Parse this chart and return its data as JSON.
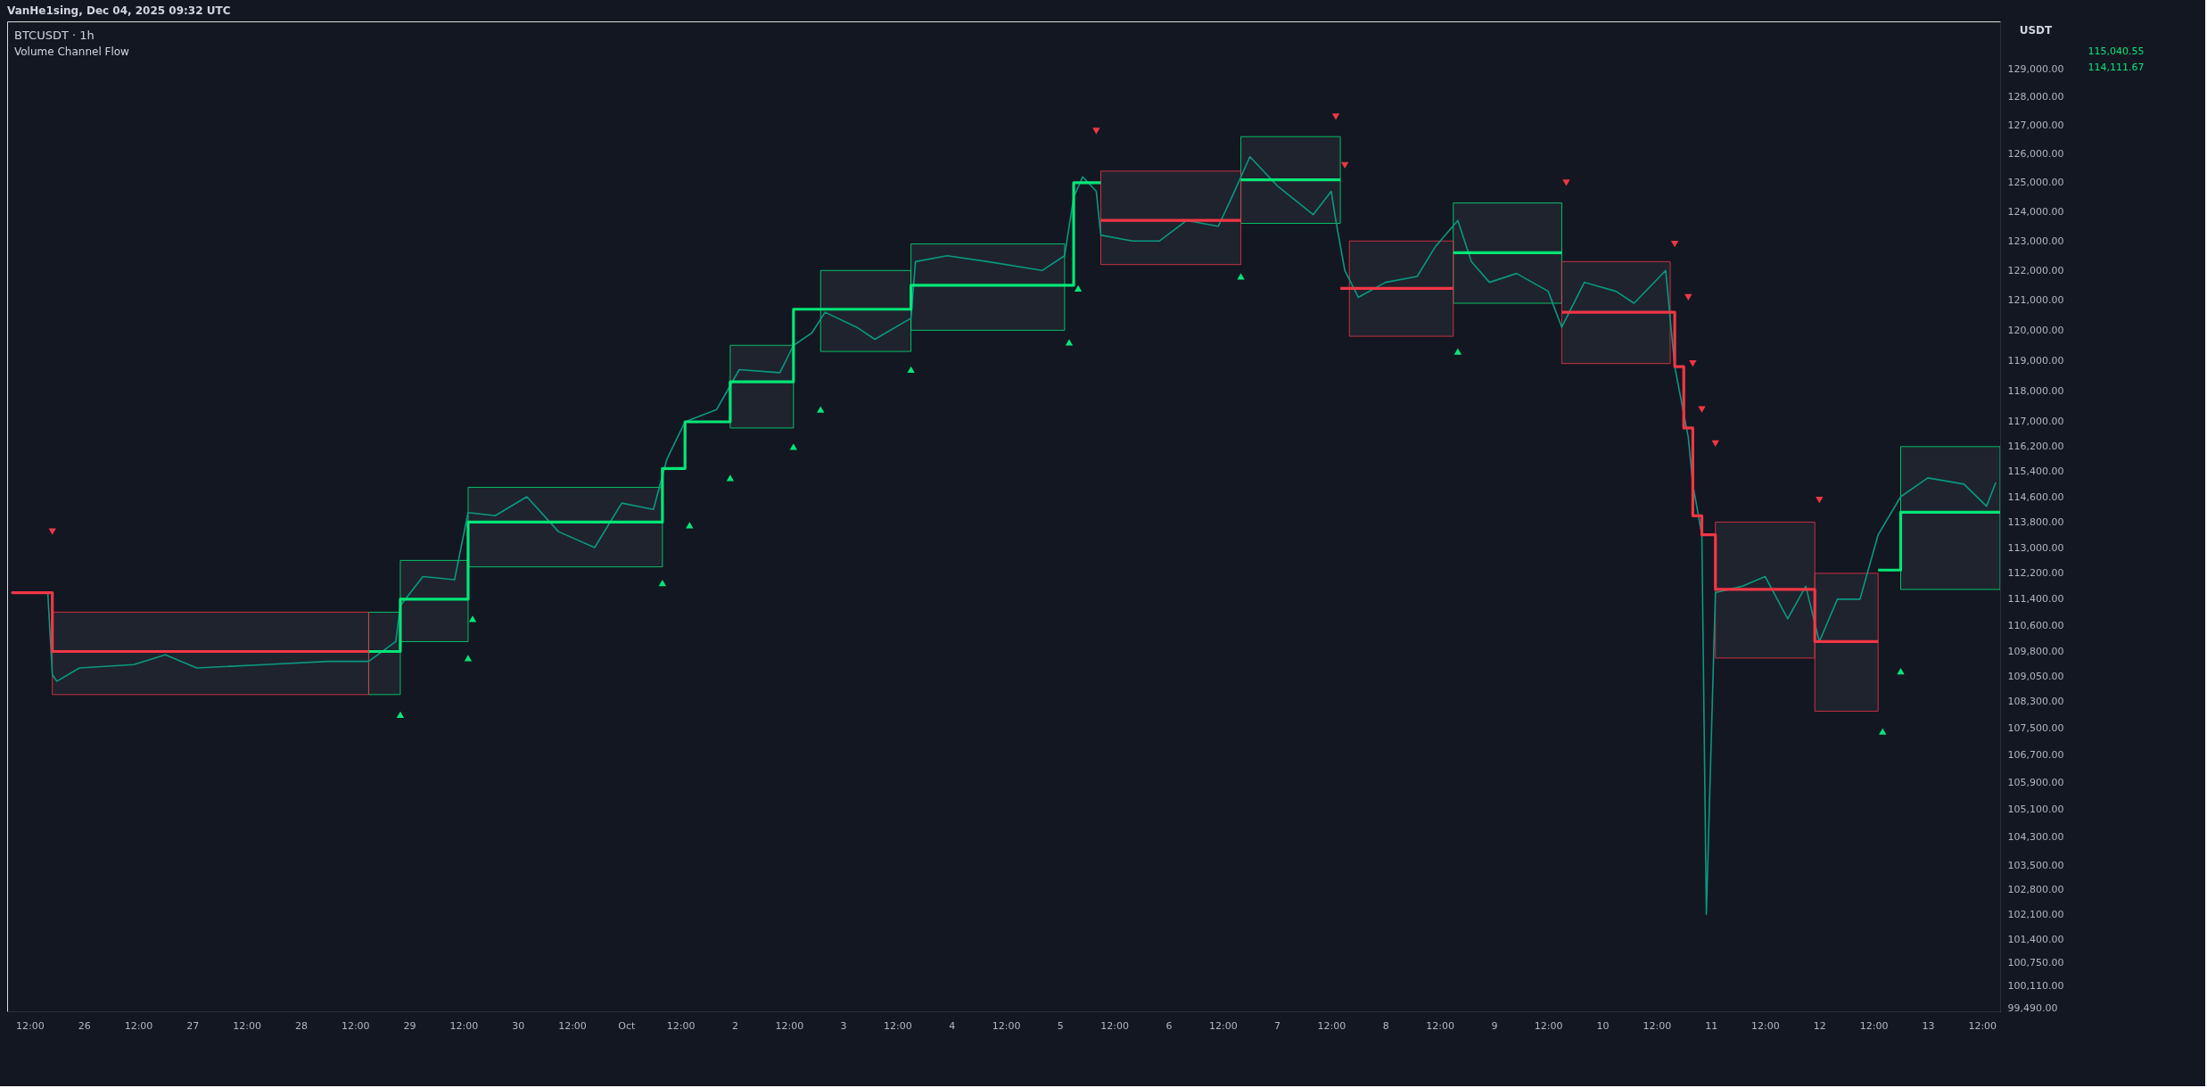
{
  "chart_data": {
    "type": "line",
    "title": "BTCUSDT · 1h",
    "subtitle": "Volume Channel Flow",
    "ylabel": "USDT",
    "annotations": [
      "VanHe1sing, Dec 04, 2025 09:32 UTC",
      "115,040.55",
      "114,111.67"
    ],
    "log": true,
    "grid": false,
    "xlim": [
      "2025-09-25T07:00",
      "2025-10-13T16:00"
    ],
    "ylim": [
      99400,
      130700
    ],
    "yticks": [
      {
        "value": 99490,
        "label": "99,490.00"
      },
      {
        "value": 100110,
        "label": "100,110.00"
      },
      {
        "value": 100750,
        "label": "100,750.00"
      },
      {
        "value": 101400,
        "label": "101,400.00"
      },
      {
        "value": 102100,
        "label": "102,100.00"
      },
      {
        "value": 102800,
        "label": "102,800.00"
      },
      {
        "value": 103500,
        "label": "103,500.00"
      },
      {
        "value": 104300,
        "label": "104,300.00"
      },
      {
        "value": 105100,
        "label": "105,100.00"
      },
      {
        "value": 105900,
        "label": "105,900.00"
      },
      {
        "value": 106700,
        "label": "106,700.00"
      },
      {
        "value": 107500,
        "label": "107,500.00"
      },
      {
        "value": 108300,
        "label": "108,300.00"
      },
      {
        "value": 109050,
        "label": "109,050.00"
      },
      {
        "value": 109800,
        "label": "109,800.00"
      },
      {
        "value": 110600,
        "label": "110,600.00"
      },
      {
        "value": 111400,
        "label": "111,400.00"
      },
      {
        "value": 112200,
        "label": "112,200.00"
      },
      {
        "value": 113000,
        "label": "113,000.00"
      },
      {
        "value": 113800,
        "label": "113,800.00"
      },
      {
        "value": 114600,
        "label": "114,600.00"
      },
      {
        "value": 115400,
        "label": "115,400.00"
      },
      {
        "value": 116200,
        "label": "116,200.00"
      },
      {
        "value": 117000,
        "label": "117,000.00"
      },
      {
        "value": 118000,
        "label": "118,000.00"
      },
      {
        "value": 119000,
        "label": "119,000.00"
      },
      {
        "value": 120000,
        "label": "120,000.00"
      },
      {
        "value": 121000,
        "label": "121,000.00"
      },
      {
        "value": 122000,
        "label": "122,000.00"
      },
      {
        "value": 123000,
        "label": "123,000.00"
      },
      {
        "value": 124000,
        "label": "124,000.00"
      },
      {
        "value": 125000,
        "label": "125,000.00"
      },
      {
        "value": 126000,
        "label": "126,000.00"
      },
      {
        "value": 127000,
        "label": "127,000.00"
      },
      {
        "value": 128000,
        "label": "128,000.00"
      },
      {
        "value": 129000,
        "label": "129,000.00"
      }
    ],
    "xticks": [
      {
        "value": "2025-09-25T12:00",
        "label": "12:00"
      },
      {
        "value": "2025-09-26T00:00",
        "label": "26"
      },
      {
        "value": "2025-09-26T12:00",
        "label": "12:00"
      },
      {
        "value": "2025-09-27T00:00",
        "label": "27"
      },
      {
        "value": "2025-09-27T12:00",
        "label": "12:00"
      },
      {
        "value": "2025-09-28T00:00",
        "label": "28"
      },
      {
        "value": "2025-09-28T12:00",
        "label": "12:00"
      },
      {
        "value": "2025-09-29T00:00",
        "label": "29"
      },
      {
        "value": "2025-09-29T12:00",
        "label": "12:00"
      },
      {
        "value": "2025-09-30T00:00",
        "label": "30"
      },
      {
        "value": "2025-09-30T12:00",
        "label": "12:00"
      },
      {
        "value": "2025-10-01T00:00",
        "label": "Oct"
      },
      {
        "value": "2025-10-01T12:00",
        "label": "12:00"
      },
      {
        "value": "2025-10-02T00:00",
        "label": "2"
      },
      {
        "value": "2025-10-02T12:00",
        "label": "12:00"
      },
      {
        "value": "2025-10-03T00:00",
        "label": "3"
      },
      {
        "value": "2025-10-03T12:00",
        "label": "12:00"
      },
      {
        "value": "2025-10-04T00:00",
        "label": "4"
      },
      {
        "value": "2025-10-04T12:00",
        "label": "12:00"
      },
      {
        "value": "2025-10-05T00:00",
        "label": "5"
      },
      {
        "value": "2025-10-05T12:00",
        "label": "12:00"
      },
      {
        "value": "2025-10-06T00:00",
        "label": "6"
      },
      {
        "value": "2025-10-06T12:00",
        "label": "12:00"
      },
      {
        "value": "2025-10-07T00:00",
        "label": "7"
      },
      {
        "value": "2025-10-07T12:00",
        "label": "12:00"
      },
      {
        "value": "2025-10-08T00:00",
        "label": "8"
      },
      {
        "value": "2025-10-08T12:00",
        "label": "12:00"
      },
      {
        "value": "2025-10-09T00:00",
        "label": "9"
      },
      {
        "value": "2025-10-09T12:00",
        "label": "12:00"
      },
      {
        "value": "2025-10-10T00:00",
        "label": "10"
      },
      {
        "value": "2025-10-10T12:00",
        "label": "12:00"
      },
      {
        "value": "2025-10-11T00:00",
        "label": "11"
      },
      {
        "value": "2025-10-11T12:00",
        "label": "12:00"
      },
      {
        "value": "2025-10-12T00:00",
        "label": "12"
      },
      {
        "value": "2025-10-12T12:00",
        "label": "12:00"
      },
      {
        "value": "2025-10-13T00:00",
        "label": "13"
      },
      {
        "value": "2025-10-13T12:00",
        "label": "12:00"
      }
    ],
    "series": [
      {
        "color": "#089981",
        "x": [
          "2025-09-25T08:00",
          "2025-09-25T16:00",
          "2025-09-25T17:00",
          "2025-09-25T18:00",
          "2025-09-25T23:00",
          "2025-09-26T11:00",
          "2025-09-26T18:00",
          "2025-09-27T01:00",
          "2025-09-27T16:00",
          "2025-09-28T06:00",
          "2025-09-28T15:00",
          "2025-09-28T21:00",
          "2025-09-28T22:00",
          "2025-09-29T03:00",
          "2025-09-29T10:00",
          "2025-09-29T13:00",
          "2025-09-29T19:00",
          "2025-09-30T02:00",
          "2025-09-30T09:00",
          "2025-09-30T17:00",
          "2025-09-30T23:00",
          "2025-10-01T06:00",
          "2025-10-01T09:00",
          "2025-10-01T13:00",
          "2025-10-01T20:00",
          "2025-10-02T01:00",
          "2025-10-02T10:00",
          "2025-10-02T13:00",
          "2025-10-02T17:00",
          "2025-10-02T20:00",
          "2025-10-03T03:00",
          "2025-10-03T07:00",
          "2025-10-03T15:00",
          "2025-10-03T16:00",
          "2025-10-03T23:00",
          "2025-10-04T08:00",
          "2025-10-04T20:00",
          "2025-10-05T01:00",
          "2025-10-05T03:00",
          "2025-10-05T05:00",
          "2025-10-05T08:00",
          "2025-10-05T09:00",
          "2025-10-05T16:00",
          "2025-10-05T22:00",
          "2025-10-06T04:00",
          "2025-10-06T11:00",
          "2025-10-06T14:00",
          "2025-10-06T18:00",
          "2025-10-07T00:00",
          "2025-10-07T08:00",
          "2025-10-07T12:00",
          "2025-10-07T13:00",
          "2025-10-07T15:00",
          "2025-10-07T18:00",
          "2025-10-08T00:00",
          "2025-10-08T07:00",
          "2025-10-08T11:00",
          "2025-10-08T16:00",
          "2025-10-08T19:00",
          "2025-10-08T23:00",
          "2025-10-09T05:00",
          "2025-10-09T12:00",
          "2025-10-09T15:00",
          "2025-10-09T20:00",
          "2025-10-10T03:00",
          "2025-10-10T07:00",
          "2025-10-10T14:00",
          "2025-10-10T16:00",
          "2025-10-10T19:00",
          "2025-10-10T20:00",
          "2025-10-10T22:00",
          "2025-10-10T23:00",
          "2025-10-11T01:00",
          "2025-10-11T07:00",
          "2025-10-11T12:00",
          "2025-10-11T17:00",
          "2025-10-11T21:00",
          "2025-10-12T00:00",
          "2025-10-12T04:00",
          "2025-10-12T09:00",
          "2025-10-12T13:00",
          "2025-10-12T18:00",
          "2025-10-13T00:00",
          "2025-10-13T08:00",
          "2025-10-13T13:00",
          "2025-10-13T15:00"
        ],
        "values": [
          111600,
          111600,
          109100,
          108900,
          109300,
          109400,
          109700,
          109300,
          109400,
          109500,
          109500,
          110100,
          111200,
          112100,
          112000,
          114100,
          114000,
          114600,
          113500,
          113000,
          114400,
          114200,
          115800,
          117000,
          117400,
          118700,
          118600,
          119500,
          119900,
          120600,
          120100,
          119700,
          120400,
          122300,
          122500,
          122300,
          122000,
          122500,
          124500,
          125200,
          124700,
          123200,
          123000,
          123000,
          123700,
          123500,
          124500,
          125900,
          124900,
          123900,
          124700,
          123700,
          122000,
          121100,
          121600,
          121800,
          122800,
          123700,
          122300,
          121600,
          121900,
          121300,
          120100,
          121600,
          121300,
          120900,
          122000,
          118800,
          116500,
          115000,
          113400,
          102100,
          111600,
          111800,
          112100,
          110800,
          111800,
          110100,
          111400,
          111400,
          113400,
          114600,
          115200,
          115000,
          114300,
          115040.55
        ]
      },
      {
        "type": "step",
        "color": "#00e676",
        "x": [
          "2025-09-28T15:00",
          "2025-09-28T22:00",
          "2025-09-28T22:00",
          "2025-09-29T13:00",
          "2025-09-29T13:00",
          "2025-10-01T08:00",
          "2025-10-01T08:00",
          "2025-10-01T13:00",
          "2025-10-01T23:00",
          "2025-10-02T13:00",
          "2025-10-02T13:00",
          "2025-10-02T19:00",
          "2025-10-03T15:00",
          "2025-10-03T15:00",
          "2025-10-05T01:00",
          "2025-10-05T03:00",
          "2025-10-05T09:00"
        ],
        "values": [
          109800,
          109800,
          111400,
          111400,
          113800,
          113800,
          115500,
          117000,
          118300,
          118300,
          120700,
          120700,
          120700,
          121500,
          121500,
          125000,
          125000
        ],
        "lower": [
          108500,
          108500,
          110100,
          110100,
          112400,
          112400,
          null,
          null,
          116800,
          116800,
          null,
          119300,
          119300,
          120000,
          120000,
          null,
          null
        ],
        "upper": [
          111000,
          111000,
          112600,
          112600,
          114900,
          114900,
          null,
          null,
          119500,
          119500,
          null,
          122000,
          122000,
          122900,
          122900,
          null,
          null
        ]
      },
      {
        "type": "step",
        "color": "#00e676",
        "x": [
          "2025-10-06T16:00",
          "2025-10-07T14:00"
        ],
        "values": [
          125100,
          125100
        ],
        "lower": [
          123600,
          123600
        ],
        "upper": [
          126600,
          126600
        ]
      },
      {
        "type": "step",
        "color": "#00e676",
        "x": [
          "2025-10-08T15:00",
          "2025-10-09T15:00"
        ],
        "values": [
          122600,
          122600
        ],
        "lower": [
          120900,
          120900
        ],
        "upper": [
          124300,
          124300
        ]
      },
      {
        "type": "step",
        "color": "#00e676",
        "x": [
          "2025-10-12T13:00",
          "2025-10-12T18:00",
          "2025-10-13T16:00"
        ],
        "values": [
          112300,
          114111.67,
          114111.67
        ],
        "lower": [
          null,
          111700,
          111700
        ],
        "upper": [
          null,
          116200,
          116200
        ]
      },
      {
        "type": "step",
        "color": "#f23645",
        "x": [
          "2025-09-25T08:00",
          "2025-09-25T17:00",
          "2025-09-28T15:00"
        ],
        "values": [
          111600,
          109800,
          109800
        ],
        "lower": [
          null,
          108500,
          108500
        ],
        "upper": [
          null,
          111000,
          111000
        ]
      },
      {
        "type": "step",
        "color": "#f23645",
        "x": [
          "2025-10-05T09:00",
          "2025-10-06T16:00"
        ],
        "values": [
          123700,
          123700
        ],
        "lower": [
          122200,
          122200
        ],
        "upper": [
          125400,
          125400
        ]
      },
      {
        "type": "step",
        "color": "#f23645",
        "x": [
          "2025-10-07T14:00",
          "2025-10-07T16:00",
          "2025-10-08T15:00"
        ],
        "values": [
          121400,
          121400,
          121400
        ],
        "lower": [
          null,
          119800,
          119800
        ],
        "upper": [
          null,
          123000,
          123000
        ]
      },
      {
        "type": "step",
        "color": "#f23645",
        "x": [
          "2025-10-09T15:00",
          "2025-10-10T15:00",
          "2025-10-10T16:00",
          "2025-10-10T18:00",
          "2025-10-10T20:00",
          "2025-10-10T22:00",
          "2025-10-11T01:00",
          "2025-10-11T23:00",
          "2025-10-11T23:00",
          "2025-10-12T13:00"
        ],
        "values": [
          120600,
          120600,
          118800,
          116800,
          114000,
          113400,
          111700,
          111700,
          110100,
          110100
        ],
        "lower": [
          118900,
          118900,
          null,
          null,
          null,
          null,
          109600,
          109600,
          108000,
          108000
        ],
        "upper": [
          122300,
          122300,
          null,
          null,
          null,
          null,
          113800,
          113800,
          112200,
          112200
        ]
      },
      {
        "type": "scatter",
        "color": "#00e676",
        "marker": "triangle",
        "x": [
          "2025-09-28T22:00",
          "2025-09-29T13:00",
          "2025-09-29T14:00",
          "2025-10-01T08:00",
          "2025-10-01T14:00",
          "2025-10-01T23:00",
          "2025-10-02T13:00",
          "2025-10-02T19:00",
          "2025-10-03T15:00",
          "2025-10-05T02:00",
          "2025-10-05T04:00",
          "2025-10-06T16:00",
          "2025-10-08T16:00",
          "2025-10-12T14:00",
          "2025-10-12T18:00"
        ],
        "values": [
          107900,
          109600,
          110800,
          111900,
          113700,
          115200,
          116200,
          117400,
          118700,
          119600,
          121400,
          121800,
          119300,
          107400,
          109200
        ]
      },
      {
        "type": "scatter",
        "color": "#f23645",
        "marker": "triangle-down",
        "x": [
          "2025-09-25T17:00",
          "2025-10-05T08:00",
          "2025-10-07T13:00",
          "2025-10-07T15:00",
          "2025-10-09T16:00",
          "2025-10-10T16:00",
          "2025-10-10T19:00",
          "2025-10-10T20:00",
          "2025-10-10T22:00",
          "2025-10-11T01:00",
          "2025-10-12T00:00"
        ],
        "values": [
          113500,
          126800,
          127300,
          125600,
          125000,
          122900,
          121100,
          118900,
          117400,
          116300,
          114500
        ]
      }
    ]
  }
}
